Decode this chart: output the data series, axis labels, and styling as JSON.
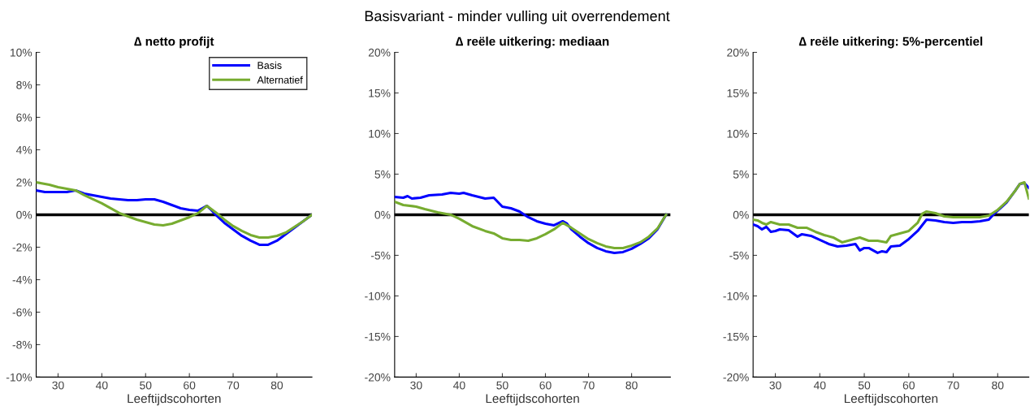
{
  "chart_data": [
    {
      "type": "line",
      "title": "∆ netto profijt",
      "xlabel": "Leeftijdscohorten",
      "annotations": [
        "Basisvariant - minder vulling uit overrendement"
      ],
      "legend": "top right",
      "grid": false,
      "xlim": [
        25,
        88
      ],
      "xticks": [
        30,
        40,
        50,
        60,
        70,
        80
      ],
      "ylim": [
        -10,
        10
      ],
      "yticks": [
        {
          "value": -10,
          "label": "-10%"
        },
        {
          "value": -8,
          "label": "-8%"
        },
        {
          "value": -6,
          "label": "-6%"
        },
        {
          "value": -4,
          "label": "-4%"
        },
        {
          "value": -2,
          "label": "-2%"
        },
        {
          "value": 0,
          "label": "0%"
        },
        {
          "value": 2,
          "label": "2%"
        },
        {
          "value": 4,
          "label": "4%"
        },
        {
          "value": 6,
          "label": "6%"
        },
        {
          "value": 8,
          "label": "8%"
        },
        {
          "value": 10,
          "label": "10%"
        }
      ],
      "ref_lines": [
        {
          "axis": "y",
          "value": 0,
          "color": "#000000"
        }
      ],
      "series": [
        {
          "name": "Basis",
          "color": "#0000ff",
          "x": [
            25,
            27,
            30,
            32,
            34,
            36,
            38,
            40,
            42,
            44,
            46,
            48,
            50,
            52,
            54,
            56,
            58,
            60,
            62,
            64,
            65,
            66,
            68,
            70,
            72,
            74,
            76,
            78,
            80,
            82,
            84,
            86,
            88
          ],
          "values": [
            1.5,
            1.4,
            1.4,
            1.4,
            1.5,
            1.3,
            1.2,
            1.1,
            1.0,
            0.95,
            0.9,
            0.9,
            0.95,
            0.95,
            0.8,
            0.6,
            0.4,
            0.3,
            0.25,
            0.55,
            0.3,
            0.0,
            -0.5,
            -0.9,
            -1.3,
            -1.6,
            -1.85,
            -1.85,
            -1.6,
            -1.2,
            -0.8,
            -0.4,
            0
          ]
        },
        {
          "name": "Alternatief",
          "color": "#77ac30",
          "x": [
            25,
            28,
            30,
            32,
            34,
            36,
            38,
            40,
            42,
            44,
            46,
            48,
            50,
            52,
            54,
            56,
            58,
            60,
            62,
            64,
            66,
            68,
            70,
            72,
            74,
            76,
            78,
            80,
            82,
            84,
            86,
            88
          ],
          "values": [
            2.0,
            1.85,
            1.7,
            1.6,
            1.5,
            1.2,
            0.95,
            0.7,
            0.4,
            0.1,
            -0.1,
            -0.3,
            -0.45,
            -0.6,
            -0.65,
            -0.55,
            -0.35,
            -0.15,
            0.1,
            0.55,
            0.15,
            -0.3,
            -0.7,
            -1.0,
            -1.25,
            -1.4,
            -1.4,
            -1.3,
            -1.1,
            -0.75,
            -0.4,
            0
          ]
        }
      ]
    },
    {
      "type": "line",
      "title": "∆ reële uitkering: mediaan",
      "xlabel": "Leeftijdscohorten",
      "legend": false,
      "grid": false,
      "xlim": [
        25,
        89
      ],
      "xticks": [
        30,
        40,
        50,
        60,
        70,
        80
      ],
      "ylim": [
        -20,
        20
      ],
      "yticks": [
        {
          "value": -20,
          "label": "-20%"
        },
        {
          "value": -15,
          "label": "-15%"
        },
        {
          "value": -10,
          "label": "-10%"
        },
        {
          "value": -5,
          "label": "-5%"
        },
        {
          "value": 0,
          "label": "0%"
        },
        {
          "value": 5,
          "label": "5%"
        },
        {
          "value": 10,
          "label": "10%"
        },
        {
          "value": 15,
          "label": "15%"
        },
        {
          "value": 20,
          "label": "20%"
        }
      ],
      "ref_lines": [
        {
          "axis": "y",
          "value": 0,
          "color": "#000000"
        }
      ],
      "series": [
        {
          "color": "#0000ff",
          "x": [
            25,
            27,
            28,
            29,
            31,
            33,
            36,
            38,
            40,
            41,
            43,
            46,
            48,
            50,
            52,
            54,
            56,
            58,
            60,
            62,
            64,
            65,
            66,
            68,
            70,
            72,
            74,
            76,
            78,
            80,
            82,
            84,
            86,
            88
          ],
          "values": [
            2.2,
            2.1,
            2.3,
            2.0,
            2.1,
            2.4,
            2.5,
            2.7,
            2.6,
            2.7,
            2.4,
            2.0,
            2.1,
            1.0,
            0.8,
            0.4,
            -0.3,
            -0.8,
            -1.1,
            -1.3,
            -0.8,
            -1.1,
            -1.8,
            -2.7,
            -3.5,
            -4.1,
            -4.5,
            -4.7,
            -4.6,
            -4.2,
            -3.6,
            -2.9,
            -1.8,
            0
          ]
        },
        {
          "color": "#77ac30",
          "x": [
            25,
            27,
            30,
            32,
            35,
            38,
            40,
            43,
            46,
            48,
            50,
            52,
            54,
            56,
            58,
            60,
            62,
            64,
            66,
            68,
            70,
            72,
            74,
            76,
            78,
            80,
            82,
            84,
            86,
            88
          ],
          "values": [
            1.6,
            1.2,
            1.0,
            0.7,
            0.3,
            0.0,
            -0.5,
            -1.4,
            -2.0,
            -2.3,
            -2.9,
            -3.1,
            -3.1,
            -3.2,
            -2.9,
            -2.4,
            -1.8,
            -1.0,
            -1.6,
            -2.3,
            -3.0,
            -3.5,
            -3.9,
            -4.1,
            -4.1,
            -3.8,
            -3.4,
            -2.7,
            -1.7,
            0
          ]
        }
      ]
    },
    {
      "type": "line",
      "title": "∆ reële uitkering: 5%-percentiel",
      "xlabel": "Leeftijdscohorten",
      "legend": false,
      "grid": false,
      "xlim": [
        25,
        87
      ],
      "xticks": [
        30,
        40,
        50,
        60,
        70,
        80
      ],
      "ylim": [
        -20,
        20
      ],
      "yticks": [
        {
          "value": -20,
          "label": "-20%"
        },
        {
          "value": -15,
          "label": "-15%"
        },
        {
          "value": -10,
          "label": "-10%"
        },
        {
          "value": -5,
          "label": "-5%"
        },
        {
          "value": 0,
          "label": "0%"
        },
        {
          "value": 5,
          "label": "5%"
        },
        {
          "value": 10,
          "label": "10%"
        },
        {
          "value": 15,
          "label": "15%"
        },
        {
          "value": 20,
          "label": "20%"
        }
      ],
      "ref_lines": [
        {
          "axis": "y",
          "value": 0,
          "color": "#000000"
        }
      ],
      "series": [
        {
          "color": "#0000ff",
          "x": [
            25,
            26,
            27,
            28,
            29,
            30,
            31,
            33,
            35,
            36,
            38,
            40,
            42,
            44,
            46,
            48,
            49,
            50,
            51,
            53,
            54,
            55,
            56,
            58,
            60,
            62,
            64,
            66,
            68,
            70,
            72,
            74,
            76,
            78,
            79,
            80,
            82,
            84,
            85,
            86,
            87
          ],
          "values": [
            -1.2,
            -1.4,
            -1.8,
            -1.5,
            -2.1,
            -2.0,
            -1.8,
            -1.9,
            -2.7,
            -2.4,
            -2.6,
            -3.1,
            -3.6,
            -3.9,
            -3.8,
            -3.6,
            -4.4,
            -4.1,
            -4.1,
            -4.7,
            -4.5,
            -4.6,
            -3.9,
            -3.8,
            -3.0,
            -2.0,
            -0.6,
            -0.7,
            -0.9,
            -1.0,
            -0.9,
            -0.9,
            -0.8,
            -0.6,
            0.0,
            0.5,
            1.5,
            3.0,
            3.8,
            3.9,
            3.3
          ]
        },
        {
          "color": "#77ac30",
          "x": [
            25,
            26,
            27,
            28,
            29,
            31,
            33,
            35,
            37,
            39,
            41,
            43,
            45,
            47,
            49,
            51,
            53,
            55,
            56,
            58,
            60,
            62,
            63,
            64,
            66,
            68,
            70,
            72,
            74,
            76,
            78,
            80,
            82,
            84,
            85,
            86,
            87
          ],
          "values": [
            -0.6,
            -0.7,
            -1.0,
            -1.2,
            -0.9,
            -1.2,
            -1.2,
            -1.6,
            -1.6,
            -2.1,
            -2.5,
            -2.8,
            -3.4,
            -3.1,
            -2.8,
            -3.2,
            -3.2,
            -3.4,
            -2.6,
            -2.3,
            -2.0,
            -1.0,
            0.1,
            0.4,
            0.2,
            -0.2,
            -0.3,
            -0.3,
            -0.3,
            -0.3,
            -0.1,
            0.6,
            1.6,
            3.0,
            3.8,
            4.0,
            2.0
          ]
        }
      ]
    }
  ]
}
